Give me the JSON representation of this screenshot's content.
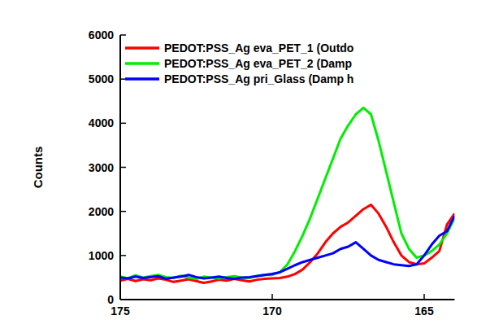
{
  "chart_data": {
    "type": "line",
    "y_label": "Counts",
    "x": [
      175,
      174.75,
      174.5,
      174.25,
      174,
      173.75,
      173.5,
      173.25,
      173,
      172.75,
      172.5,
      172.25,
      172,
      171.75,
      171.5,
      171.25,
      171,
      170.75,
      170.5,
      170.25,
      170,
      169.75,
      169.5,
      169.25,
      169,
      168.75,
      168.5,
      168.25,
      168,
      167.75,
      167.5,
      167.25,
      167,
      166.75,
      166.5,
      166.25,
      166,
      165.75,
      165.5,
      165.25,
      165,
      164.75,
      164.5,
      164.25,
      164
    ],
    "series": [
      {
        "name": "PEDOT:PSS_Ag eva_PET_1 (Outdo",
        "color": "#ff0000",
        "values": [
          430,
          470,
          420,
          460,
          440,
          480,
          450,
          400,
          430,
          460,
          420,
          380,
          410,
          450,
          430,
          470,
          440,
          410,
          450,
          470,
          480,
          490,
          520,
          580,
          680,
          850,
          1050,
          1300,
          1500,
          1650,
          1750,
          1900,
          2050,
          2150,
          1950,
          1650,
          1300,
          1000,
          850,
          800,
          820,
          950,
          1100,
          1700,
          1950
        ]
      },
      {
        "name": "PEDOT:PSS_Ag eva_PET_2 (Damp",
        "color": "#00ee00",
        "values": [
          520,
          480,
          550,
          500,
          530,
          560,
          510,
          490,
          540,
          500,
          470,
          520,
          500,
          480,
          510,
          530,
          500,
          490,
          540,
          560,
          560,
          620,
          800,
          1100,
          1450,
          1850,
          2300,
          2750,
          3200,
          3650,
          3950,
          4200,
          4350,
          4200,
          3600,
          2900,
          2200,
          1500,
          1150,
          950,
          1000,
          1100,
          1250,
          1500,
          1850
        ]
      },
      {
        "name": "PEDOT:PSS_Ag pri_Glass (Damp h",
        "color": "#0000ff",
        "values": [
          500,
          480,
          520,
          490,
          510,
          530,
          470,
          500,
          520,
          560,
          510,
          480,
          500,
          520,
          490,
          470,
          500,
          510,
          530,
          560,
          580,
          620,
          700,
          780,
          850,
          900,
          950,
          1000,
          1050,
          1150,
          1200,
          1300,
          1150,
          1000,
          900,
          850,
          800,
          780,
          760,
          800,
          1000,
          1250,
          1450,
          1550,
          1900
        ]
      }
    ],
    "xlim": [
      175,
      164
    ],
    "xticks": [
      175,
      170,
      165
    ],
    "ylim": [
      0,
      6000
    ],
    "yticks": [
      0,
      1000,
      2000,
      3000,
      4000,
      5000,
      6000
    ],
    "grid": false,
    "legend": "upper left"
  }
}
